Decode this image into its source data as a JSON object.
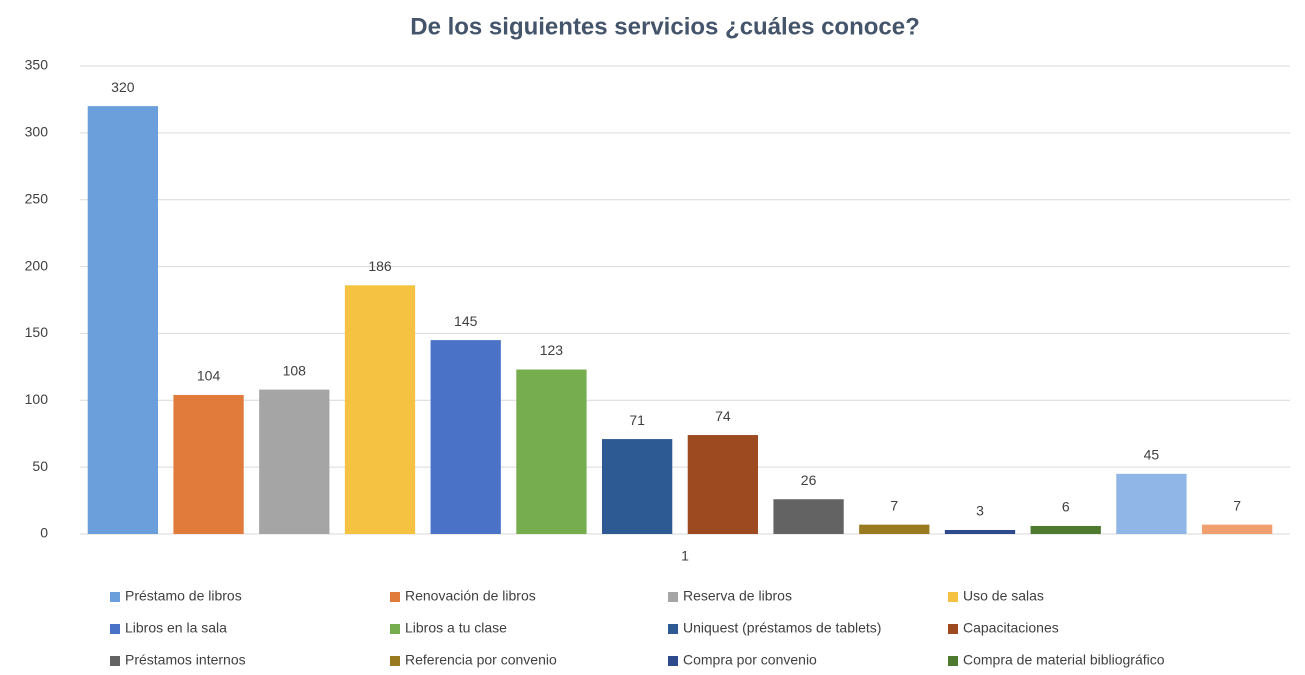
{
  "chart_data": {
    "type": "bar",
    "title": "De los siguientes servicios ¿cuáles conoce?",
    "categories": [
      "1"
    ],
    "series": [
      {
        "name": "Préstamo de libros",
        "color": "#6a9fdc",
        "values": [
          320
        ]
      },
      {
        "name": "Renovación de libros",
        "color": "#e07b3c",
        "values": [
          104
        ]
      },
      {
        "name": "Reserva de libros",
        "color": "#a5a5a5",
        "values": [
          108
        ]
      },
      {
        "name": "Uso de salas",
        "color": "#f5c242",
        "values": [
          186
        ]
      },
      {
        "name": "Libros en la sala",
        "color": "#4a72c7",
        "values": [
          145
        ]
      },
      {
        "name": "Libros a tu clase",
        "color": "#76ad4f",
        "values": [
          123
        ]
      },
      {
        "name": "Uniquest (préstamos de tablets)",
        "color": "#2e5a94",
        "values": [
          71
        ]
      },
      {
        "name": "Capacitaciones",
        "color": "#9e4a20",
        "values": [
          74
        ]
      },
      {
        "name": "Préstamos internos",
        "color": "#636363",
        "values": [
          26
        ]
      },
      {
        "name": "Referencia por convenio",
        "color": "#9a7a20",
        "values": [
          7
        ]
      },
      {
        "name": "Compra por convenio",
        "color": "#2d4a8c",
        "values": [
          3
        ]
      },
      {
        "name": "Compra de material bibliográfico",
        "color": "#4d7a2e",
        "values": [
          6
        ]
      },
      {
        "color": "#8fb6e6",
        "values": [
          45
        ]
      },
      {
        "color": "#f0a070",
        "values": [
          7
        ]
      }
    ],
    "ylim": [
      0,
      350
    ],
    "yticks": [
      0,
      50,
      100,
      150,
      200,
      250,
      300,
      350
    ],
    "grid": true
  }
}
